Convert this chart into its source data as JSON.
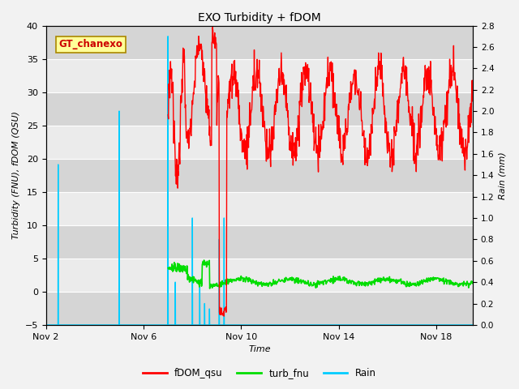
{
  "title": "EXO Turbidity + fDOM",
  "ylabel_left": "Turbidity (FNU), fDOM (QSU)",
  "ylabel_right": "Rain (mm)",
  "xlabel": "Time",
  "annotation": "GT_chanexo",
  "ylim_left": [
    -5,
    40
  ],
  "ylim_right": [
    0.0,
    2.8
  ],
  "plot_bg_light": "#ebebeb",
  "plot_bg_dark": "#d5d5d5",
  "grid_color": "#ffffff",
  "fig_facecolor": "#f2f2f2",
  "colors": {
    "fdom": "#ff0000",
    "turb": "#00dd00",
    "rain": "#00ccff"
  },
  "xtick_positions": [
    2,
    6,
    10,
    14,
    18
  ],
  "xtick_labels": [
    "Nov 2",
    "Nov 6",
    "Nov 10",
    "Nov 14",
    "Nov 18"
  ],
  "yticks_left": [
    -5,
    0,
    5,
    10,
    15,
    20,
    25,
    30,
    35,
    40
  ],
  "yticks_right": [
    0.0,
    0.2,
    0.4,
    0.6,
    0.8,
    1.0,
    1.2,
    1.4,
    1.6,
    1.8,
    2.0,
    2.2,
    2.4,
    2.6,
    2.8
  ],
  "xlim": [
    2,
    19.5
  ],
  "legend_labels": [
    "fDOM_qsu",
    "turb_fnu",
    "Rain"
  ],
  "annotation_color": "#cc0000",
  "annotation_bg": "#ffff99",
  "annotation_edge": "#aa8800"
}
